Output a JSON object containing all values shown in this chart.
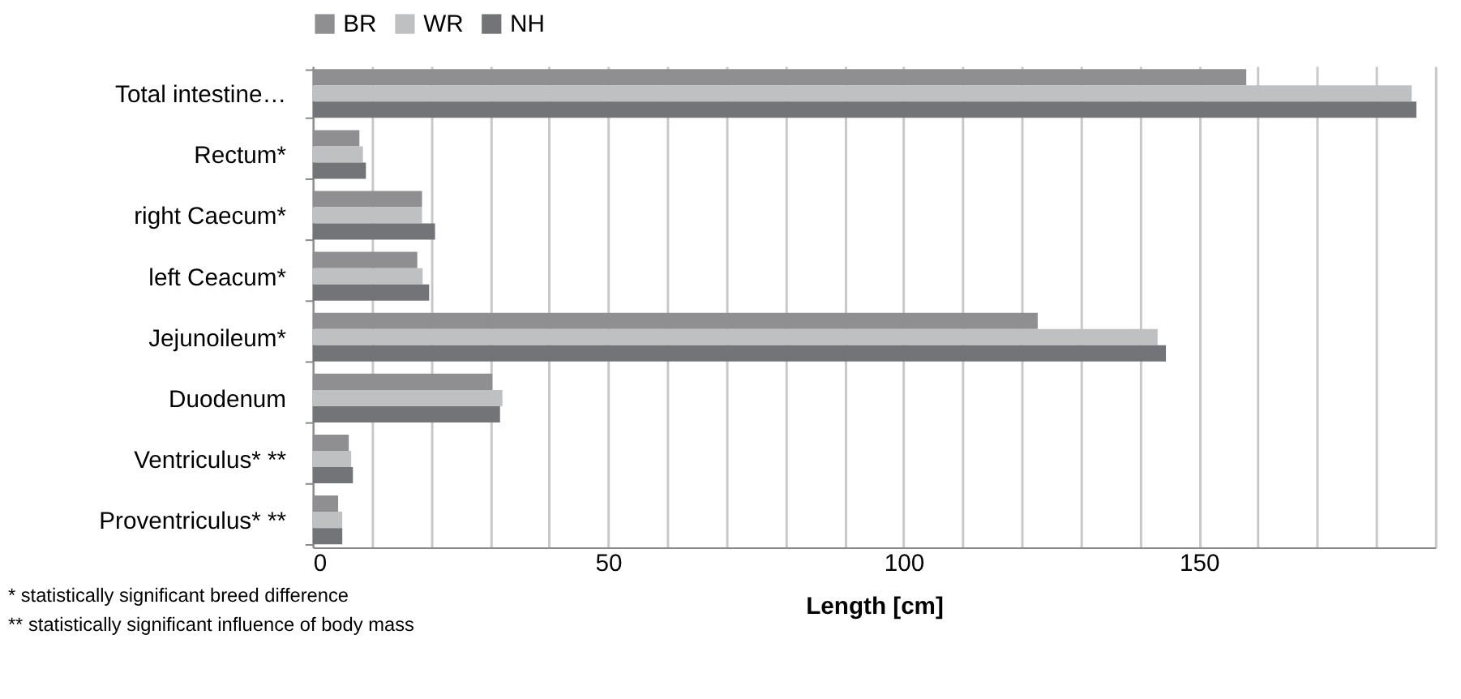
{
  "chart_data": {
    "type": "bar",
    "orientation": "horizontal",
    "xlabel": "Length [cm]",
    "categories": [
      "Total intestine…",
      "Rectum*",
      "right Caecum*",
      "left Ceacum*",
      "Jejunoileum*",
      "Duodenum",
      "Ventriculus* **",
      "Proventriculus* **"
    ],
    "series": [
      {
        "name": "BR",
        "color": "#8f8f91",
        "values": [
          158,
          7.9,
          18.5,
          17.7,
          122.7,
          30.4,
          6.1,
          4.3
        ]
      },
      {
        "name": "WR",
        "color": "#bfc0c2",
        "values": [
          186,
          8.5,
          18.5,
          18.6,
          143,
          32.1,
          6.5,
          5.0
        ]
      },
      {
        "name": "NH",
        "color": "#737477",
        "values": [
          186.8,
          9.0,
          20.7,
          19.7,
          144.4,
          31.7,
          6.8,
          5.0
        ]
      }
    ],
    "xlim": [
      0,
      190
    ],
    "xticks": [
      0,
      {
        "value": 10,
        "label": null
      },
      {
        "value": 20,
        "label": null
      },
      {
        "value": 30,
        "label": null
      },
      {
        "value": 40,
        "label": null
      },
      50,
      {
        "value": 60,
        "label": null
      },
      {
        "value": 70,
        "label": null
      },
      {
        "value": 80,
        "label": null
      },
      {
        "value": 90,
        "label": null
      },
      100,
      {
        "value": 110,
        "label": null
      },
      {
        "value": 120,
        "label": null
      },
      {
        "value": 130,
        "label": null
      },
      {
        "value": 140,
        "label": null
      },
      150,
      {
        "value": 160,
        "label": null
      },
      {
        "value": 170,
        "label": null
      },
      {
        "value": 180,
        "label": null
      },
      {
        "value": 190,
        "label": null
      }
    ],
    "grid": "x",
    "legend": "top",
    "annotations": [
      "* statistically significant breed difference",
      "** statistically significant influence of body mass"
    ]
  }
}
